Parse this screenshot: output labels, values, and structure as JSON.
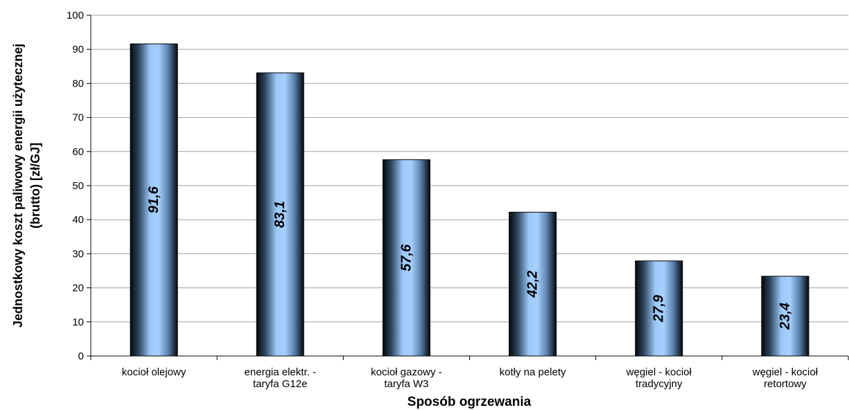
{
  "chart_data": {
    "type": "bar",
    "categories": [
      [
        "kocioł olejowy"
      ],
      [
        "energia elektr. -",
        "taryfa G12e"
      ],
      [
        "kocioł gazowy -",
        "taryfa W3"
      ],
      [
        "kotły na pelety"
      ],
      [
        "węgiel - kocioł",
        "tradycyjny"
      ],
      [
        "węgiel - kocioł",
        "retortowy"
      ]
    ],
    "values": [
      91.6,
      83.1,
      57.6,
      42.2,
      27.9,
      23.4
    ],
    "data_labels": [
      "91,6",
      "83,1",
      "57,6",
      "42,2",
      "27,9",
      "23,4"
    ],
    "xlabel": "Sposób ogrzewania",
    "ylabel": [
      "Jednostkowy koszt paliwowy energii użytecznej",
      "(brutto) [zł/GJ]"
    ],
    "ylim": [
      0,
      100
    ],
    "yticks": [
      0,
      10,
      20,
      30,
      40,
      50,
      60,
      70,
      80,
      90,
      100
    ],
    "grid": true,
    "legend": "none",
    "colors": {
      "bar_light": "#a8d0ff",
      "bar_dark": "#0a1420",
      "grid": "#a0a0a0",
      "axis": "#000000"
    }
  }
}
